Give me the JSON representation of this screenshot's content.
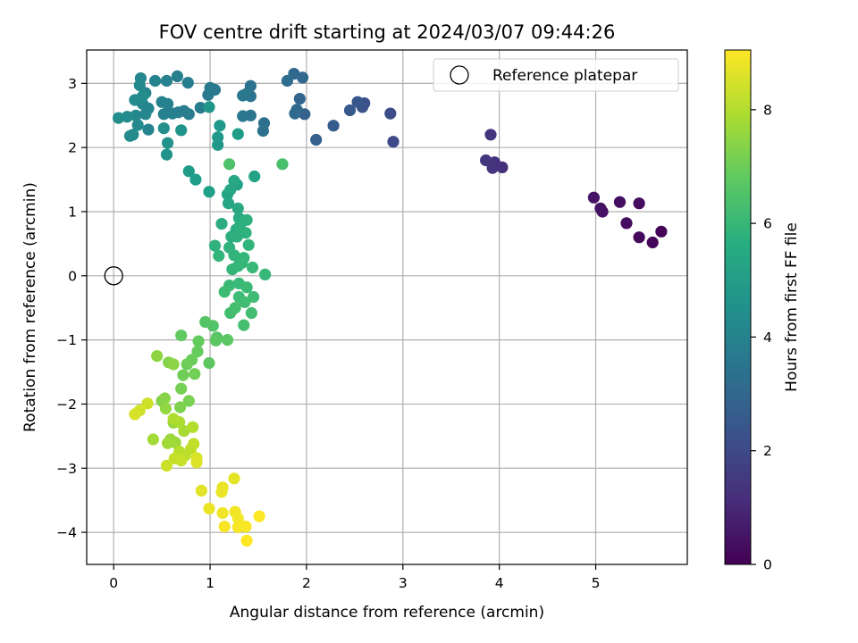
{
  "chart_data": {
    "type": "scatter",
    "title": "FOV centre drift starting at 2024/03/07 09:44:26",
    "xlabel": "Angular distance from reference (arcmin)",
    "ylabel": "Rotation from reference (arcmin)",
    "xlim": [
      -0.28,
      5.95
    ],
    "ylim": [
      -4.5,
      3.52
    ],
    "x_ticks": [
      0,
      1,
      2,
      3,
      4,
      5
    ],
    "y_ticks": [
      -4,
      -3,
      -2,
      -1,
      0,
      1,
      2,
      3
    ],
    "grid": true,
    "legend": {
      "position": "top-right",
      "entries": [
        "Reference platepar"
      ]
    },
    "reference_point": {
      "x": 0,
      "y": 0,
      "label": "Reference platepar"
    },
    "colorbar": {
      "label": "Hours from first FF file",
      "min": 0,
      "max": 9.05,
      "ticks": [
        0,
        2,
        4,
        6,
        8
      ],
      "colormap": "viridis"
    },
    "points": [
      [
        5.68,
        0.69,
        0.1
      ],
      [
        5.59,
        0.52,
        0.15
      ],
      [
        5.45,
        0.6,
        0.2
      ],
      [
        5.45,
        1.13,
        0.25
      ],
      [
        5.32,
        0.82,
        0.3
      ],
      [
        5.25,
        1.15,
        0.35
      ],
      [
        5.07,
        1.0,
        0.4
      ],
      [
        5.05,
        1.05,
        0.45
      ],
      [
        4.98,
        1.22,
        0.5
      ],
      [
        4.03,
        1.69,
        1.2
      ],
      [
        3.95,
        1.77,
        1.3
      ],
      [
        3.93,
        1.68,
        1.35
      ],
      [
        3.91,
        2.2,
        1.4
      ],
      [
        3.86,
        1.8,
        1.45
      ],
      [
        2.9,
        2.09,
        2.0
      ],
      [
        2.87,
        2.53,
        2.1
      ],
      [
        2.6,
        2.69,
        2.2
      ],
      [
        2.58,
        2.63,
        2.3
      ],
      [
        2.53,
        2.71,
        2.4
      ],
      [
        2.45,
        2.58,
        2.5
      ],
      [
        2.28,
        2.34,
        2.6
      ],
      [
        2.1,
        2.12,
        2.7
      ],
      [
        1.98,
        2.52,
        2.8
      ],
      [
        1.93,
        2.76,
        2.9
      ],
      [
        1.96,
        3.09,
        3.0
      ],
      [
        1.87,
        3.15,
        3.05
      ],
      [
        1.9,
        2.59,
        3.1
      ],
      [
        1.88,
        2.53,
        3.15
      ],
      [
        1.8,
        3.04,
        3.2
      ],
      [
        1.56,
        2.38,
        3.3
      ],
      [
        1.55,
        2.26,
        3.35
      ],
      [
        1.42,
        2.96,
        3.4
      ],
      [
        1.42,
        2.8,
        3.45
      ],
      [
        1.42,
        2.5,
        3.5
      ],
      [
        1.38,
        2.84,
        3.55
      ],
      [
        1.34,
        2.81,
        3.6
      ],
      [
        1.34,
        2.49,
        3.65
      ],
      [
        1.05,
        2.9,
        3.7
      ],
      [
        1.0,
        2.93,
        3.72
      ],
      [
        0.98,
        2.82,
        3.75
      ],
      [
        0.9,
        2.62,
        3.78
      ],
      [
        0.78,
        2.52,
        3.8
      ],
      [
        0.77,
        3.01,
        3.82
      ],
      [
        0.73,
        2.57,
        3.85
      ],
      [
        0.67,
        2.55,
        3.88
      ],
      [
        0.66,
        3.11,
        3.9
      ],
      [
        0.61,
        2.53,
        3.92
      ],
      [
        0.56,
        2.68,
        3.95
      ],
      [
        0.55,
        3.04,
        3.97
      ],
      [
        0.52,
        2.52,
        4.0
      ],
      [
        0.5,
        2.71,
        4.02
      ],
      [
        0.43,
        3.04,
        4.05
      ],
      [
        0.36,
        2.28,
        4.08
      ],
      [
        0.36,
        2.61,
        4.1
      ],
      [
        0.33,
        2.85,
        4.12
      ],
      [
        0.33,
        2.52,
        4.15
      ],
      [
        0.3,
        2.68,
        4.18
      ],
      [
        0.28,
        3.08,
        4.2
      ],
      [
        0.27,
        2.97,
        4.22
      ],
      [
        0.25,
        2.35,
        4.25
      ],
      [
        0.23,
        2.5,
        4.28
      ],
      [
        0.22,
        2.74,
        4.3
      ],
      [
        0.2,
        2.2,
        4.32
      ],
      [
        0.17,
        2.18,
        4.35
      ],
      [
        0.14,
        2.48,
        4.38
      ],
      [
        0.05,
        2.46,
        4.4
      ],
      [
        0.3,
        2.8,
        4.42
      ],
      [
        0.52,
        2.3,
        4.5
      ],
      [
        0.56,
        2.07,
        4.6
      ],
      [
        0.55,
        1.89,
        4.65
      ],
      [
        0.7,
        2.27,
        4.7
      ],
      [
        0.99,
        2.63,
        4.75
      ],
      [
        1.08,
        2.04,
        4.8
      ],
      [
        1.08,
        2.16,
        4.85
      ],
      [
        1.1,
        2.34,
        4.9
      ],
      [
        1.29,
        2.21,
        4.95
      ],
      [
        0.78,
        1.63,
        5.0
      ],
      [
        0.85,
        1.5,
        5.05
      ],
      [
        0.99,
        1.31,
        5.1
      ],
      [
        1.28,
        1.42,
        5.15
      ],
      [
        1.46,
        1.55,
        5.2
      ],
      [
        1.18,
        1.27,
        5.25
      ],
      [
        1.19,
        1.13,
        5.3
      ],
      [
        1.21,
        1.34,
        5.35
      ],
      [
        1.25,
        1.48,
        5.4
      ],
      [
        1.29,
        1.05,
        5.45
      ],
      [
        1.3,
        0.9,
        5.5
      ],
      [
        1.27,
        0.72,
        5.55
      ],
      [
        1.12,
        0.81,
        5.6
      ],
      [
        1.22,
        0.61,
        5.65
      ],
      [
        1.31,
        0.78,
        5.7
      ],
      [
        1.38,
        0.87,
        5.72
      ],
      [
        1.28,
        0.61,
        5.75
      ],
      [
        1.2,
        0.44,
        5.8
      ],
      [
        1.37,
        0.67,
        5.82
      ],
      [
        1.05,
        0.47,
        5.85
      ],
      [
        1.25,
        0.32,
        5.88
      ],
      [
        1.09,
        0.31,
        5.9
      ],
      [
        1.4,
        0.48,
        5.92
      ],
      [
        1.23,
        0.1,
        5.95
      ],
      [
        1.35,
        0.28,
        5.98
      ],
      [
        1.29,
        0.15,
        6.0
      ],
      [
        1.33,
        0.2,
        6.02
      ],
      [
        1.57,
        0.02,
        6.05
      ],
      [
        1.44,
        0.13,
        6.08
      ],
      [
        1.3,
        -0.12,
        6.1
      ],
      [
        1.2,
        -0.15,
        6.12
      ],
      [
        1.38,
        -0.18,
        6.15
      ],
      [
        1.15,
        -0.25,
        6.18
      ],
      [
        1.3,
        -0.33,
        6.2
      ],
      [
        1.45,
        -0.33,
        6.22
      ],
      [
        1.36,
        -0.41,
        6.25
      ],
      [
        1.43,
        -0.58,
        6.28
      ],
      [
        1.21,
        -0.58,
        6.3
      ],
      [
        1.26,
        -0.5,
        6.32
      ],
      [
        1.35,
        -0.77,
        6.35
      ],
      [
        1.75,
        1.74,
        6.4
      ],
      [
        1.2,
        1.74,
        6.45
      ],
      [
        1.03,
        -0.78,
        6.55
      ],
      [
        0.95,
        -0.72,
        6.6
      ],
      [
        1.07,
        -0.96,
        6.65
      ],
      [
        1.18,
        -1.0,
        6.7
      ],
      [
        1.06,
        -1.01,
        6.72
      ],
      [
        0.99,
        -1.36,
        6.75
      ],
      [
        0.7,
        -0.93,
        6.8
      ],
      [
        0.88,
        -1.02,
        6.85
      ],
      [
        0.87,
        -1.18,
        6.9
      ],
      [
        0.81,
        -1.31,
        6.95
      ],
      [
        0.76,
        -1.38,
        7.0
      ],
      [
        0.72,
        -1.55,
        7.05
      ],
      [
        0.84,
        -1.53,
        7.1
      ],
      [
        0.7,
        -1.76,
        7.15
      ],
      [
        0.78,
        -1.95,
        7.2
      ],
      [
        0.69,
        -2.05,
        7.25
      ],
      [
        0.5,
        -1.95,
        7.3
      ],
      [
        0.57,
        -1.35,
        7.35
      ],
      [
        0.53,
        -1.91,
        7.4
      ],
      [
        0.62,
        -1.38,
        7.45
      ],
      [
        0.45,
        -1.25,
        7.5
      ],
      [
        0.54,
        -2.07,
        7.55
      ],
      [
        0.62,
        -2.29,
        7.6
      ],
      [
        0.59,
        -2.55,
        7.65
      ],
      [
        0.64,
        -2.6,
        7.7
      ],
      [
        0.56,
        -2.61,
        7.75
      ],
      [
        0.41,
        -2.55,
        7.8
      ],
      [
        0.73,
        -2.42,
        7.85
      ],
      [
        0.68,
        -2.28,
        7.9
      ],
      [
        0.62,
        -2.23,
        7.95
      ],
      [
        0.82,
        -2.36,
        8.0
      ],
      [
        0.68,
        -2.74,
        8.05
      ],
      [
        0.74,
        -2.8,
        8.1
      ],
      [
        0.8,
        -2.7,
        8.15
      ],
      [
        0.83,
        -2.62,
        8.2
      ],
      [
        0.63,
        -2.85,
        8.25
      ],
      [
        0.7,
        -2.88,
        8.3
      ],
      [
        0.55,
        -2.96,
        8.35
      ],
      [
        0.35,
        -1.99,
        8.4
      ],
      [
        0.27,
        -2.1,
        8.45
      ],
      [
        0.22,
        -2.16,
        8.5
      ],
      [
        0.86,
        -2.84,
        8.55
      ],
      [
        0.86,
        -2.91,
        8.6
      ],
      [
        0.91,
        -3.35,
        8.65
      ],
      [
        1.25,
        -3.16,
        8.7
      ],
      [
        1.13,
        -3.3,
        8.75
      ],
      [
        1.12,
        -3.37,
        8.78
      ],
      [
        0.99,
        -3.63,
        8.8
      ],
      [
        1.13,
        -3.7,
        8.85
      ],
      [
        1.26,
        -3.68,
        8.88
      ],
      [
        1.29,
        -3.78,
        8.9
      ],
      [
        1.33,
        -3.9,
        8.92
      ],
      [
        1.29,
        -3.92,
        8.95
      ],
      [
        1.15,
        -3.91,
        8.97
      ],
      [
        1.37,
        -3.91,
        9.0
      ],
      [
        1.51,
        -3.75,
        9.02
      ],
      [
        1.38,
        -4.13,
        9.05
      ]
    ]
  }
}
